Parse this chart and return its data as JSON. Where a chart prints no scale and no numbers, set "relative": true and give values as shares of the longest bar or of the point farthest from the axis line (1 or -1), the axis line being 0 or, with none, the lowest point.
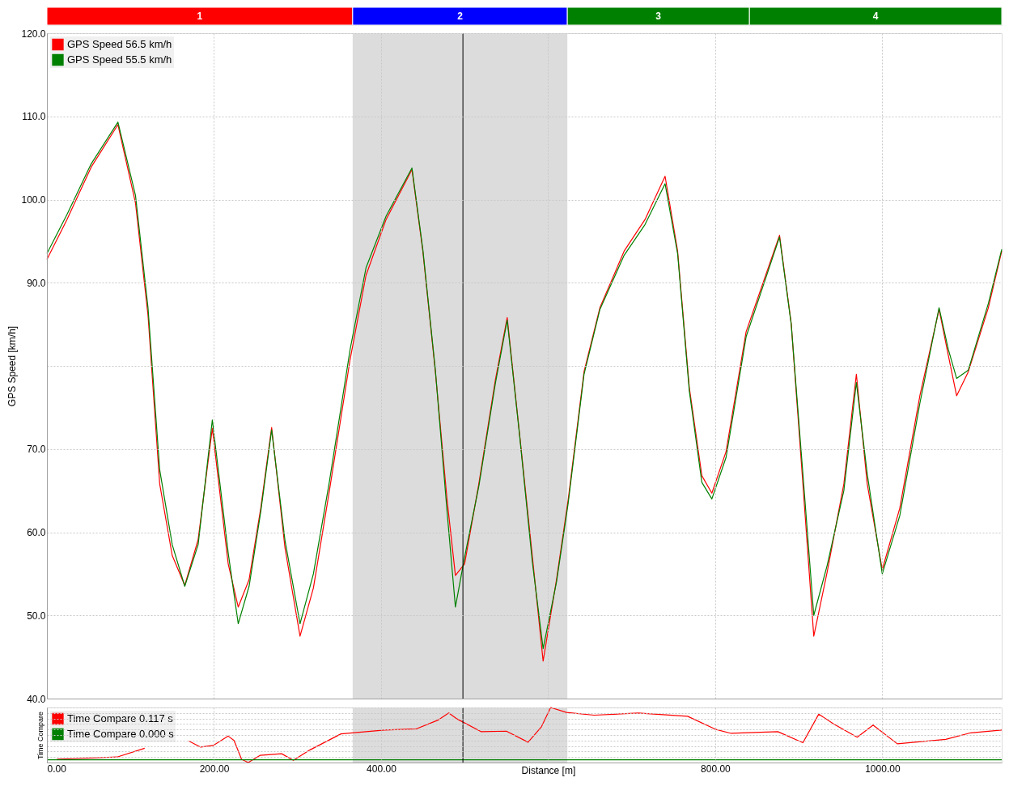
{
  "chart_data": [
    {
      "type": "bar",
      "orientation": "horizontal",
      "stacked": true,
      "categories": [
        null
      ],
      "xlim": [
        0,
        1143
      ],
      "tick_labels": false,
      "series": [
        {
          "name": "1",
          "color": "#ff0000",
          "values": [
            366
          ]
        },
        {
          "name": "2",
          "color": "#0000ff",
          "values": [
            257
          ]
        },
        {
          "name": "3",
          "color": "#008000",
          "values": [
            218
          ]
        },
        {
          "name": "4",
          "color": "#008000",
          "values": [
            302
          ]
        }
      ]
    },
    {
      "type": "line",
      "ylabel": "GPS Speed [km/h]",
      "xlim": [
        0,
        1143
      ],
      "ylim": [
        40,
        120
      ],
      "xticks": [
        {
          "value": 0,
          "label": null
        },
        {
          "value": 200,
          "label": null
        },
        {
          "value": 400,
          "label": null
        },
        {
          "value": 600,
          "label": null
        },
        {
          "value": 800,
          "label": null
        },
        {
          "value": 1000,
          "label": null
        }
      ],
      "yticks": [
        {
          "value": 40,
          "label": "40.0"
        },
        {
          "value": 50,
          "label": "50.0"
        },
        {
          "value": 60,
          "label": "60.0"
        },
        {
          "value": 70,
          "label": "70.0"
        },
        {
          "value": 80,
          "label": null
        },
        {
          "value": 90,
          "label": "90.0"
        },
        {
          "value": 100,
          "label": "100.0"
        },
        {
          "value": 110,
          "label": "110.0"
        },
        {
          "value": 120,
          "label": "120.0"
        }
      ],
      "tick_labels": "y",
      "grid": true,
      "legend": "top left",
      "marker": "none",
      "line_style": "solid",
      "x": [
        0,
        24,
        53,
        85,
        106,
        121,
        135,
        150,
        165,
        181,
        198,
        217,
        229,
        242,
        256,
        269,
        285,
        303,
        319,
        338,
        363,
        382,
        406,
        437,
        450,
        465,
        479,
        489,
        500,
        517,
        537,
        551,
        566,
        581,
        594,
        610,
        624,
        643,
        662,
        691,
        716,
        740,
        755,
        769,
        784,
        796,
        813,
        837,
        857,
        877,
        891,
        905,
        918,
        934,
        954,
        969,
        982,
        1000,
        1021,
        1045,
        1068,
        1079,
        1089,
        1103,
        1127,
        1143
      ],
      "series": [
        {
          "name": "GPS Speed 56.5 km/h",
          "color": "#ff0000",
          "values": [
            92.8,
            97.6,
            103.9,
            109.0,
            99.6,
            86.1,
            65.8,
            57.2,
            53.6,
            59.1,
            72.5,
            56.2,
            51.0,
            54.3,
            62.9,
            72.6,
            58.1,
            47.5,
            53.3,
            64.9,
            80.8,
            90.9,
            97.6,
            103.6,
            93.8,
            79.3,
            63.9,
            54.8,
            56.2,
            65.8,
            78.4,
            85.8,
            71.6,
            57.2,
            44.5,
            54.3,
            63.9,
            79.3,
            87.0,
            93.8,
            97.6,
            102.8,
            93.8,
            77.4,
            66.8,
            64.7,
            69.7,
            84.1,
            89.9,
            95.7,
            85.1,
            65.8,
            47.5,
            55.2,
            65.8,
            79.0,
            65.8,
            55.5,
            62.9,
            76.4,
            86.8,
            81.3,
            76.4,
            79.3,
            87.0,
            93.8
          ]
        },
        {
          "name": "GPS Speed 55.5 km/h",
          "color": "#008000",
          "values": [
            93.5,
            98.2,
            104.3,
            109.3,
            100.5,
            87.0,
            67.5,
            58.5,
            53.5,
            58.5,
            73.5,
            57.5,
            49.0,
            53.5,
            62.5,
            72.3,
            59.0,
            49.0,
            55.0,
            66.0,
            82.0,
            91.8,
            98.0,
            103.8,
            94.0,
            79.5,
            62.5,
            51.0,
            57.0,
            65.5,
            78.0,
            85.5,
            71.5,
            56.5,
            46.0,
            54.0,
            63.5,
            79.0,
            86.8,
            93.3,
            97.0,
            101.9,
            93.5,
            77.0,
            66.0,
            64.0,
            69.0,
            83.5,
            89.5,
            95.5,
            85.0,
            67.0,
            50.0,
            56.0,
            65.0,
            78.0,
            67.0,
            55.0,
            62.0,
            75.5,
            87.0,
            82.0,
            78.5,
            79.5,
            87.5,
            94.0
          ]
        }
      ],
      "bands": [
        {
          "axis": "x",
          "from": 366,
          "to": 623,
          "color": "#dcdcdc"
        }
      ],
      "ref_lines": [
        {
          "axis": "x",
          "value": 498,
          "color": "#000000"
        }
      ]
    },
    {
      "type": "line",
      "relative": true,
      "ylabel": "Time Compare",
      "xlabel": "Distance [m]",
      "xlim": [
        0,
        1143
      ],
      "xticks": [
        {
          "value": 0,
          "label": "0.00"
        },
        {
          "value": 200,
          "label": "200.00"
        },
        {
          "value": 400,
          "label": "400.00"
        },
        {
          "value": 600,
          "label": null
        },
        {
          "value": 800,
          "label": "800.00"
        },
        {
          "value": 1000,
          "label": "1000.00"
        }
      ],
      "tick_labels": "x",
      "grid": true,
      "legend": "top left",
      "marker": "none",
      "line_style": "solid",
      "series": [
        {
          "name": "Time Compare 0.117 s",
          "color": "#ff0000",
          "x": [
            12,
            32,
            84,
            117,
            128,
            170,
            184,
            199,
            217,
            224,
            233,
            241,
            255,
            281,
            295,
            315,
            352,
            404,
            442,
            468,
            481,
            490,
            520,
            550,
            576,
            592,
            603,
            622,
            655,
            708,
            767,
            801,
            819,
            875,
            905,
            924,
            942,
            970,
            989,
            1018,
            1076,
            1106,
            1143
          ],
          "values": [
            0.06,
            0.07,
            0.1,
            0.26,
            null,
            0.39,
            0.28,
            0.31,
            0.48,
            0.4,
            0.06,
            0,
            0.13,
            0.16,
            0.04,
            0.23,
            0.52,
            0.59,
            0.61,
            0.77,
            0.9,
            0.8,
            0.56,
            0.57,
            0.37,
            0.65,
            1,
            0.91,
            0.86,
            0.9,
            0.84,
            0.6,
            0.53,
            0.56,
            0.36,
            0.88,
            0.7,
            0.46,
            0.68,
            0.34,
            0.42,
            0.54,
            0.59
          ]
        },
        {
          "name": "Time Compare 0.000 s",
          "color": "#008000",
          "x": [
            0,
            1143
          ],
          "values": [
            0.05,
            0.05
          ]
        }
      ],
      "bands": [
        {
          "axis": "x",
          "from": 366,
          "to": 623,
          "color": "#dcdcdc"
        }
      ],
      "ref_lines": [
        {
          "axis": "x",
          "value": 498,
          "color": "#000000"
        }
      ]
    }
  ]
}
